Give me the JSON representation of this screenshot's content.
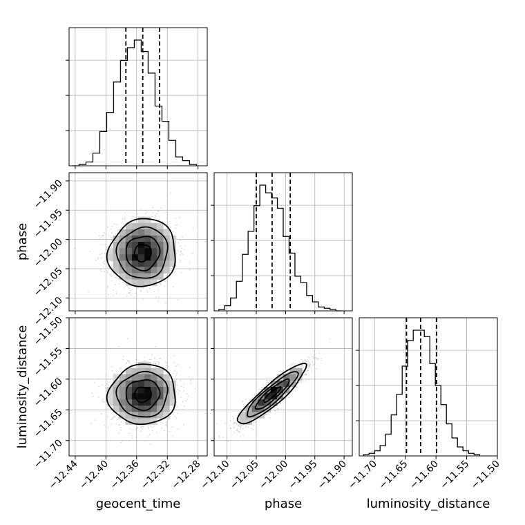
{
  "chart_data": {
    "type": "corner",
    "parameters": [
      {
        "key": "geocent_time",
        "label": "geocent_time",
        "range": [
          -12.448,
          -12.268
        ],
        "ticks": [
          -12.44,
          -12.4,
          -12.36,
          -12.32,
          -12.28
        ],
        "tick_labels": [
          "−12.44",
          "−12.40",
          "−12.36",
          "−12.32",
          "−12.28"
        ],
        "quantiles": [
          -12.374,
          -12.352,
          -12.33
        ],
        "hist_bins": [
          -12.444,
          -12.435,
          -12.426,
          -12.417,
          -12.408,
          -12.399,
          -12.39,
          -12.381,
          -12.372,
          -12.363,
          -12.354,
          -12.345,
          -12.336,
          -12.327,
          -12.318,
          -12.309,
          -12.3,
          -12.291,
          -12.282
        ],
        "hist_counts": [
          0.0,
          0.01,
          0.03,
          0.1,
          0.27,
          0.42,
          0.66,
          0.83,
          0.93,
          0.99,
          0.9,
          0.73,
          0.47,
          0.35,
          0.2,
          0.07,
          0.04,
          0.01
        ]
      },
      {
        "key": "phase",
        "label": "phase",
        "range": [
          -12.122,
          -11.886
        ],
        "ticks": [
          -12.1,
          -12.05,
          -12.0,
          -11.95,
          -11.9
        ],
        "tick_labels": [
          "−12.10",
          "−12.05",
          "−12.00",
          "−11.95",
          "−11.90"
        ],
        "quantiles": [
          -12.05,
          -12.023,
          -11.992
        ],
        "hist_bins": [
          -12.114,
          -12.104,
          -12.094,
          -12.084,
          -12.074,
          -12.064,
          -12.054,
          -12.044,
          -12.034,
          -12.024,
          -12.014,
          -12.004,
          -11.994,
          -11.984,
          -11.974,
          -11.964,
          -11.954,
          -11.944,
          -11.934,
          -11.924,
          -11.914,
          -11.904
        ],
        "hist_counts": [
          0.01,
          0.04,
          0.1,
          0.23,
          0.44,
          0.62,
          0.82,
          0.98,
          0.92,
          0.88,
          0.8,
          0.58,
          0.45,
          0.27,
          0.22,
          0.12,
          0.07,
          0.03,
          0.02,
          0.01,
          0.0
        ]
      },
      {
        "key": "luminosity_distance",
        "label": "luminosity_distance",
        "range": [
          -11.725,
          -11.5
        ],
        "ticks": [
          -11.7,
          -11.65,
          -11.6,
          -11.55,
          -11.5
        ],
        "tick_labels": [
          "−11.70",
          "−11.65",
          "−11.60",
          "−11.55",
          "−11.50"
        ],
        "quantiles": [
          -11.648,
          -11.625,
          -11.599
        ],
        "hist_bins": [
          -11.718,
          -11.709,
          -11.7,
          -11.691,
          -11.682,
          -11.673,
          -11.664,
          -11.655,
          -11.646,
          -11.637,
          -11.628,
          -11.619,
          -11.61,
          -11.601,
          -11.592,
          -11.583,
          -11.574,
          -11.565,
          -11.556,
          -11.547,
          -11.538,
          -11.529
        ],
        "hist_counts": [
          0.01,
          0.02,
          0.04,
          0.08,
          0.17,
          0.32,
          0.48,
          0.7,
          0.9,
          0.98,
          0.98,
          0.93,
          0.72,
          0.55,
          0.4,
          0.25,
          0.14,
          0.07,
          0.04,
          0.02,
          0.01
        ]
      }
    ],
    "correlations": {
      "geocent_time|phase": 0.05,
      "geocent_time|luminosity_distance": 0.04,
      "phase|luminosity_distance": 0.9
    },
    "grid": true,
    "contour_levels": [
      "0.5-sigma",
      "1-sigma",
      "1.5-sigma",
      "2-sigma"
    ]
  }
}
